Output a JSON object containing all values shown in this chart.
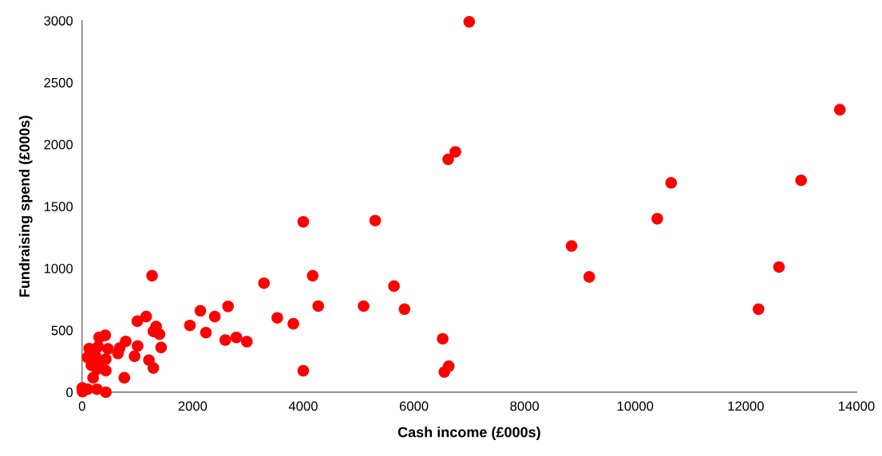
{
  "chart_data": {
    "type": "scatter",
    "xlabel": "Cash income (£000s)",
    "ylabel": "Fundraising spend (£000s)",
    "xlim": [
      0,
      14000
    ],
    "ylim": [
      0,
      3000
    ],
    "xticks": [
      0,
      2000,
      4000,
      6000,
      8000,
      10000,
      12000,
      14000
    ],
    "yticks": [
      0,
      500,
      1000,
      1500,
      2000,
      2500,
      3000
    ],
    "grid": false,
    "legend": false,
    "marker": "circle",
    "series": [
      {
        "color": "#ff0000",
        "x": [
          7000,
          13700,
          13000,
          10650,
          10400,
          8850,
          9170,
          12600,
          12230,
          6750,
          6620,
          5300,
          4000,
          4170,
          3290,
          5640,
          5830,
          5090,
          4270,
          3530,
          3820,
          4000,
          6520,
          6630,
          6550,
          1266,
          1950,
          2140,
          2400,
          2640,
          2240,
          2590,
          2790,
          2980,
          1160,
          1000,
          1340,
          1290,
          1400,
          1430,
          1210,
          1290,
          765,
          420,
          310,
          790,
          680,
          470,
          1005,
          650,
          950,
          130,
          290,
          100,
          430,
          245,
          170,
          290,
          430,
          200,
          5,
          10,
          100,
          270,
          430,
          270
        ],
        "values": [
          2990,
          2280,
          1710,
          1690,
          1400,
          1180,
          930,
          1010,
          670,
          1940,
          1880,
          1385,
          1375,
          940,
          880,
          856,
          670,
          695,
          695,
          600,
          552,
          173,
          431,
          210,
          163,
          940,
          539,
          657,
          610,
          693,
          481,
          421,
          442,
          408,
          610,
          573,
          530,
          491,
          468,
          361,
          259,
          195,
          116,
          459,
          442,
          410,
          356,
          350,
          373,
          313,
          290,
          352,
          367,
          281,
          266,
          292,
          217,
          227,
          174,
          116,
          34,
          5,
          24,
          24,
          0,
          185
        ]
      }
    ]
  }
}
